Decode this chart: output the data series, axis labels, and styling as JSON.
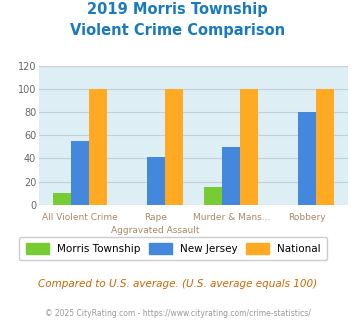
{
  "title_line1": "2019 Morris Township",
  "title_line2": "Violent Crime Comparison",
  "title_color": "#1a7abf",
  "group_labels_top": [
    "",
    "Rape",
    "Murder & Mans...",
    ""
  ],
  "group_labels_bottom": [
    "All Violent Crime",
    "Aggravated Assault",
    "",
    "Robbery"
  ],
  "morris_values": [
    10,
    0,
    15,
    0
  ],
  "nj_values": [
    55,
    41,
    50,
    80
  ],
  "national_values": [
    100,
    100,
    100,
    100
  ],
  "morris_color": "#77cc33",
  "nj_color": "#4488dd",
  "national_color": "#ffaa22",
  "ylim": [
    0,
    120
  ],
  "yticks": [
    0,
    20,
    40,
    60,
    80,
    100,
    120
  ],
  "plot_bg": "#ddeef4",
  "grid_color": "#c0d0dc",
  "legend_labels": [
    "Morris Township",
    "New Jersey",
    "National"
  ],
  "footnote1": "Compared to U.S. average. (U.S. average equals 100)",
  "footnote2": "© 2025 CityRating.com - https://www.cityrating.com/crime-statistics/",
  "footnote1_color": "#cc6600",
  "footnote2_color": "#999999",
  "label_color": "#aa8866",
  "bar_width": 0.24
}
